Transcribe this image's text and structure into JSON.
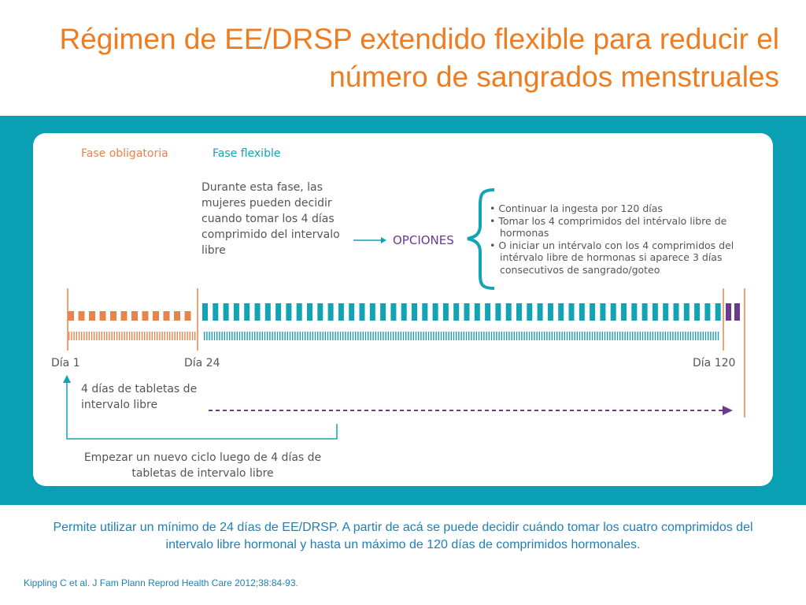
{
  "title": "Régimen de EE/DRSP extendido flexible para reducir el número de sangrados menstruales",
  "diagram": {
    "phase_mandatory_label": "Fase obligatoria",
    "phase_flexible_label": "Fase flexible",
    "flexible_description": "Durante esta fase, las mujeres pueden decidir cuando tomar los 4 días comprimido del intervalo libre",
    "options_label": "OPCIONES",
    "options": [
      "• Continuar la ingesta por 120 días",
      "• Tomar los 4 comprimidos del intérvalo libre de hormonas",
      "• O iniciar un intérvalo con los 4 comprimidos del intérvalo libre de hormonas si aparece 3 días consecutivos de sangrado/goteo"
    ],
    "day_start": "Día 1",
    "day_24": "Día 24",
    "day_120": "Día 120",
    "free_interval_label": "4 días de tabletas de intervalo libre",
    "new_cycle_label": "Empezar un nuevo ciclo luego de 4 días de tabletas de intervalo libre"
  },
  "footer_text": "Permite utilizar un mínimo de 24 días de EE/DRSP. A partir de acá se puede decidir cuándo tomar los cuatro comprimidos del intervalo libre hormonal y hasta un máximo de 120 días de comprimidos hormonales.",
  "reference": "Kippling C et al. J Fam Plann Reprod Health Care 2012;38:84-93.",
  "colors": {
    "title": "#ee7d21",
    "band": "#0a9fb2",
    "mandatory": "#e8834a",
    "flexible": "#12a3b4",
    "options": "#6a3a8c",
    "text": "#555559",
    "footer": "#1f7fb6"
  }
}
